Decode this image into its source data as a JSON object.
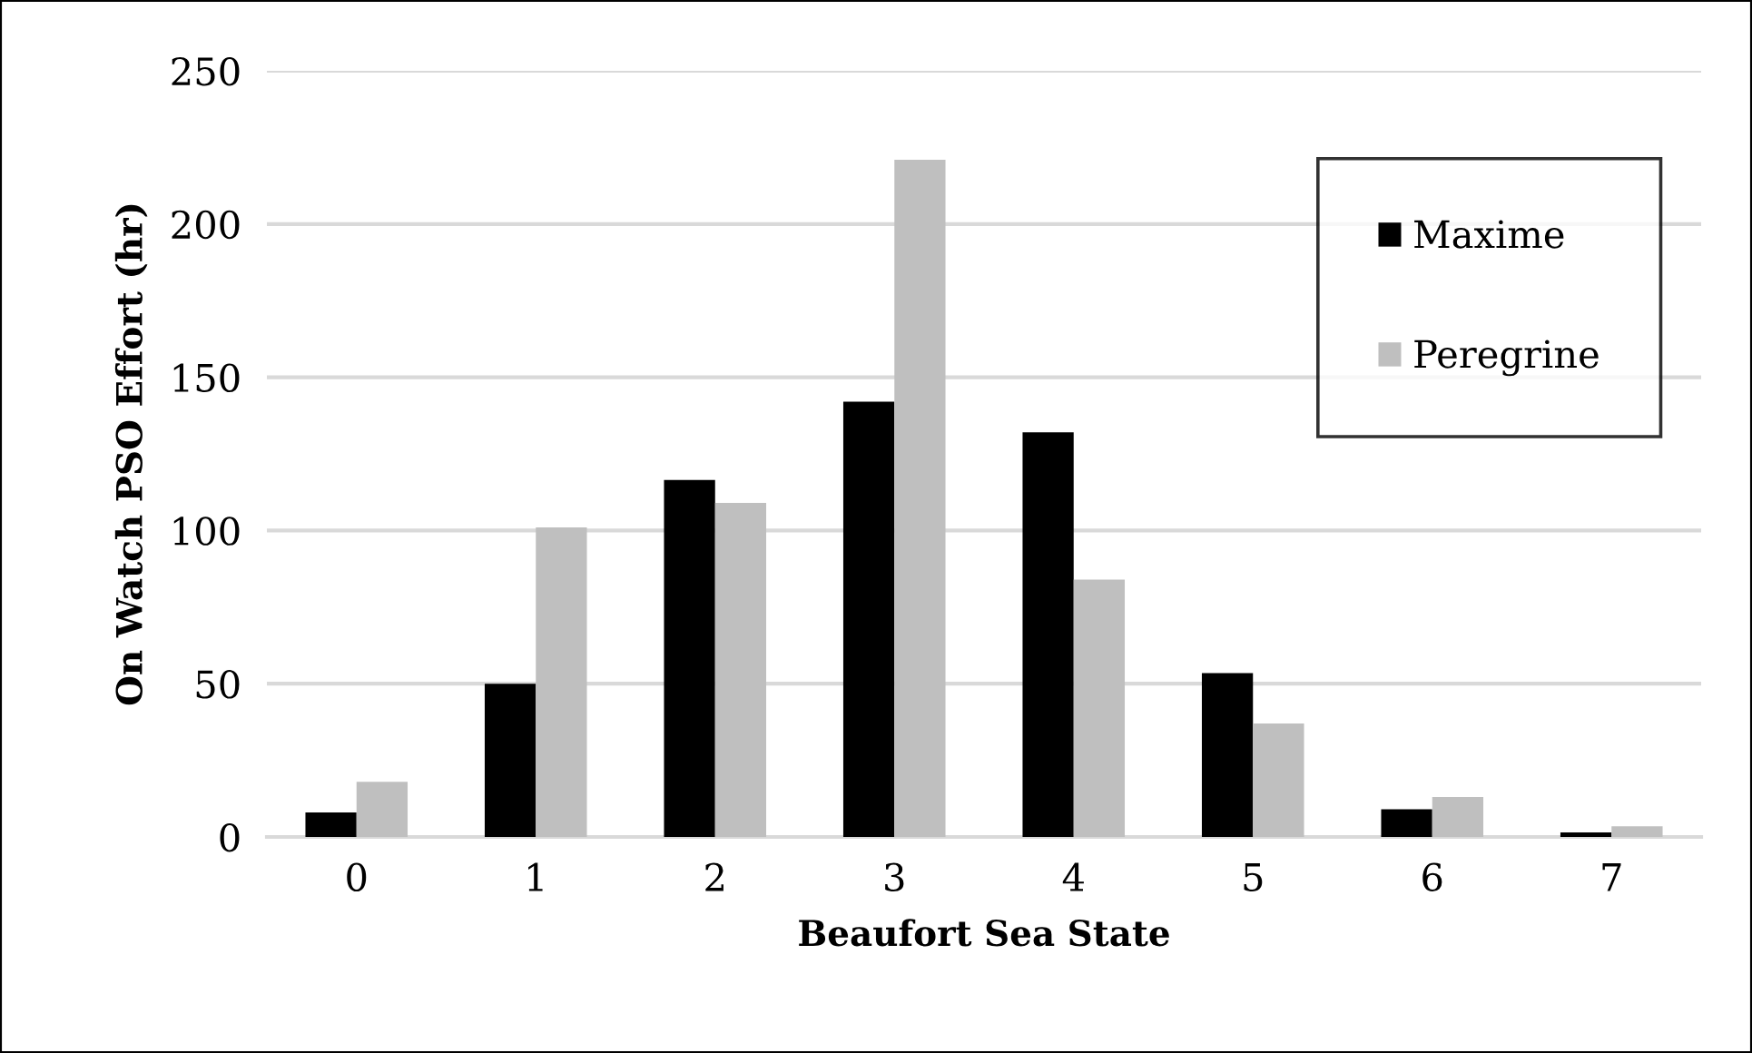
{
  "chart_data": {
    "type": "bar",
    "xlabel": "Beaufort Sea State",
    "ylabel": "On Watch PSO Effort (hr)",
    "categories": [
      "0",
      "1",
      "2",
      "3",
      "4",
      "5",
      "6",
      "7"
    ],
    "series": [
      {
        "name": "Maxime",
        "color": "#000000",
        "values": [
          8,
          50,
          116.5,
          142,
          132,
          53.5,
          9,
          1.5
        ]
      },
      {
        "name": "Peregrine",
        "color": "#bfbfbf",
        "values": [
          18,
          101,
          109,
          221,
          84,
          37,
          13,
          3.5
        ]
      }
    ],
    "ylim": [
      0,
      250
    ],
    "yticks": [
      0,
      50,
      100,
      150,
      200,
      250
    ],
    "grid": "y",
    "legend": "top right"
  }
}
